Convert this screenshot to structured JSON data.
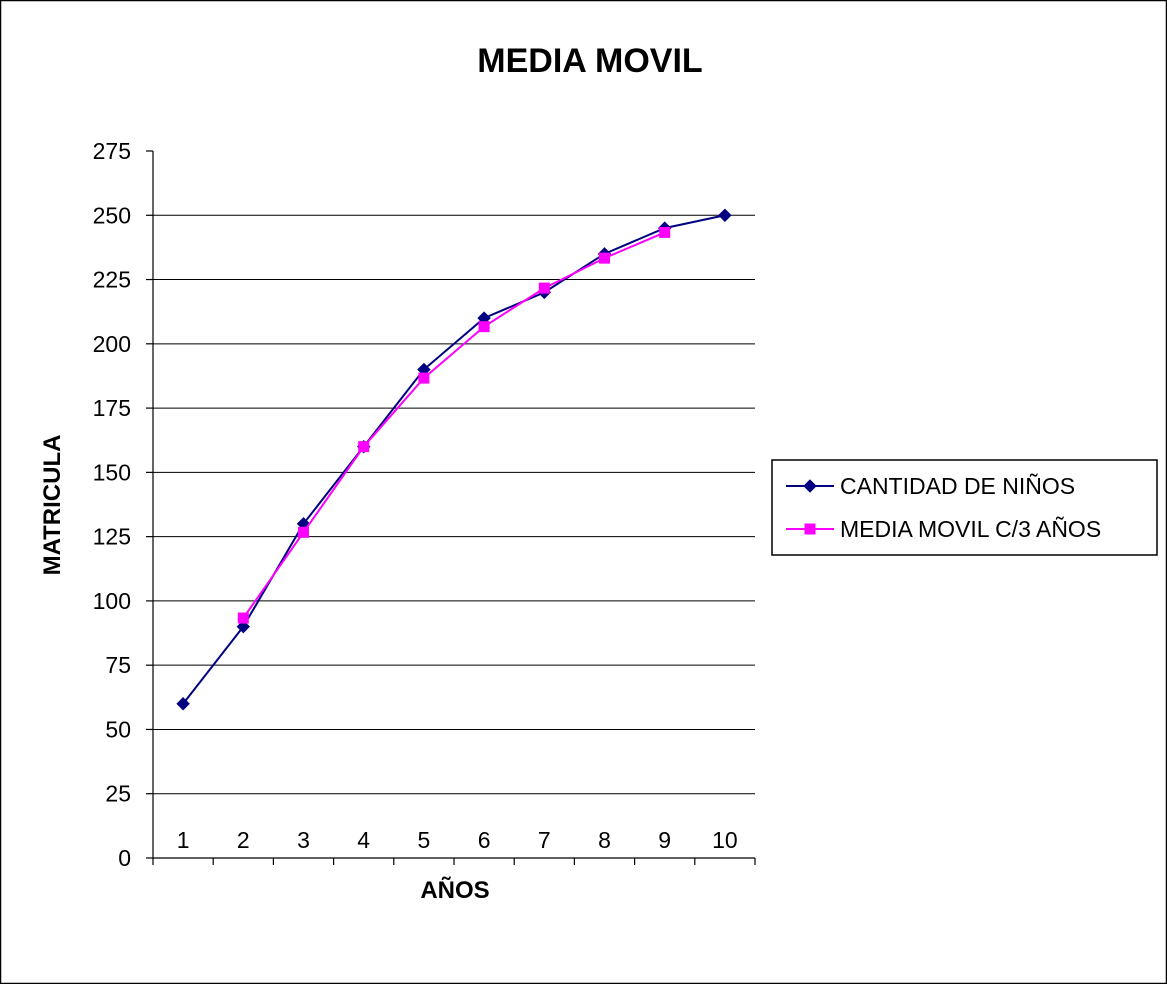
{
  "chart_data": {
    "type": "line",
    "title": "MEDIA MOVIL",
    "xlabel": "AÑOS",
    "ylabel": "MATRICULA",
    "categories": [
      "1",
      "2",
      "3",
      "4",
      "5",
      "6",
      "7",
      "8",
      "9",
      "10"
    ],
    "ylim": [
      0,
      275
    ],
    "yticks": [
      "0",
      "25",
      "50",
      "75",
      "100",
      "125",
      "150",
      "175",
      "200",
      "225",
      "250",
      "275"
    ],
    "grid": "horizontal",
    "legend_position": "right",
    "series": [
      {
        "name": "CANTIDAD DE NIÑOS",
        "color": "#000080",
        "marker": "diamond",
        "values": [
          60,
          90,
          130,
          160,
          190,
          210,
          220,
          235,
          245,
          250
        ]
      },
      {
        "name": "MEDIA MOVIL C/3 AÑOS",
        "color": "#FF00FF",
        "marker": "square",
        "values": [
          null,
          93.33,
          126.67,
          160,
          186.67,
          206.67,
          221.67,
          233.33,
          243.33,
          null
        ]
      }
    ]
  }
}
